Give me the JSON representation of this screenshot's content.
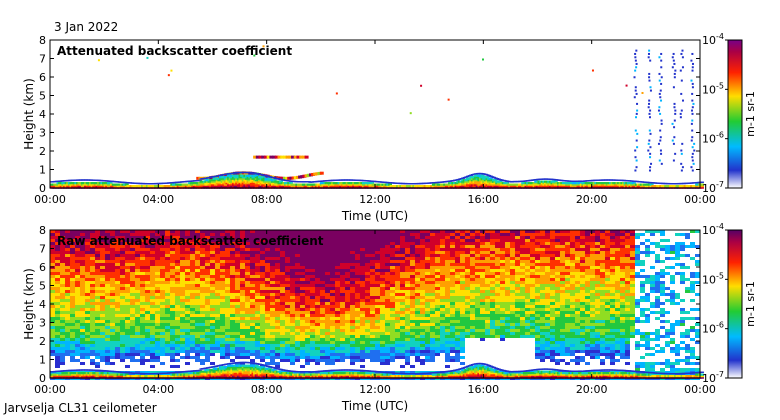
{
  "date": "3 Jan 2022",
  "footer": "Jarvselja CL31 ceilometer",
  "chart_data": [
    {
      "type": "heatmap",
      "title": "Attenuated backscatter coefficient",
      "xlabel": "Time (UTC)",
      "ylabel": "Height (km)",
      "xlim": [
        0,
        24
      ],
      "ylim": [
        0,
        8
      ],
      "x_ticks": [
        0,
        4,
        8,
        12,
        16,
        20,
        24
      ],
      "x_tick_labels": [
        "00:00",
        "04:00",
        "08:00",
        "12:00",
        "16:00",
        "20:00",
        "00:00"
      ],
      "y_ticks": [
        0,
        1,
        2,
        3,
        4,
        5,
        6,
        7,
        8
      ],
      "y_tick_labels": [
        "0",
        "1",
        "2",
        "3",
        "4",
        "5",
        "6",
        "7",
        "8"
      ],
      "colorbar": {
        "scale": "log",
        "range": [
          1e-07,
          0.0001
        ],
        "tick_labels": [
          "10-7",
          "10-6",
          "10-5",
          "10-4"
        ],
        "label": "m-1 sr-1"
      },
      "features": [
        {
          "name": "boundary layer",
          "from": 0,
          "to": 24,
          "height_km": 0.3
        },
        {
          "name": "low cloud layer",
          "from": 5.5,
          "to": 10,
          "height_km": 0.8
        },
        {
          "name": "elevated layer",
          "from": 7.6,
          "to": 9.3,
          "height_km": 1.7
        },
        {
          "name": "precipitation streaks",
          "from": 21.5,
          "to": 24,
          "height_km": 7.3
        }
      ]
    },
    {
      "type": "heatmap",
      "title": "Raw attenuated backscatter coefficient",
      "xlabel": "Time (UTC)",
      "ylabel": "Height (km)",
      "xlim": [
        0,
        24
      ],
      "ylim": [
        0,
        8
      ],
      "x_ticks": [
        0,
        4,
        8,
        12,
        16,
        20,
        24
      ],
      "x_tick_labels": [
        "00:00",
        "04:00",
        "08:00",
        "12:00",
        "16:00",
        "20:00",
        "00:00"
      ],
      "y_ticks": [
        0,
        1,
        2,
        3,
        4,
        5,
        6,
        7,
        8
      ],
      "y_tick_labels": [
        "0",
        "1",
        "2",
        "3",
        "4",
        "5",
        "6",
        "7",
        "8"
      ],
      "colorbar": {
        "scale": "log",
        "range": [
          1e-07,
          0.0001
        ],
        "tick_labels": [
          "10-7",
          "10-6",
          "10-5",
          "10-4"
        ],
        "label": "m-1 sr-1"
      }
    }
  ]
}
